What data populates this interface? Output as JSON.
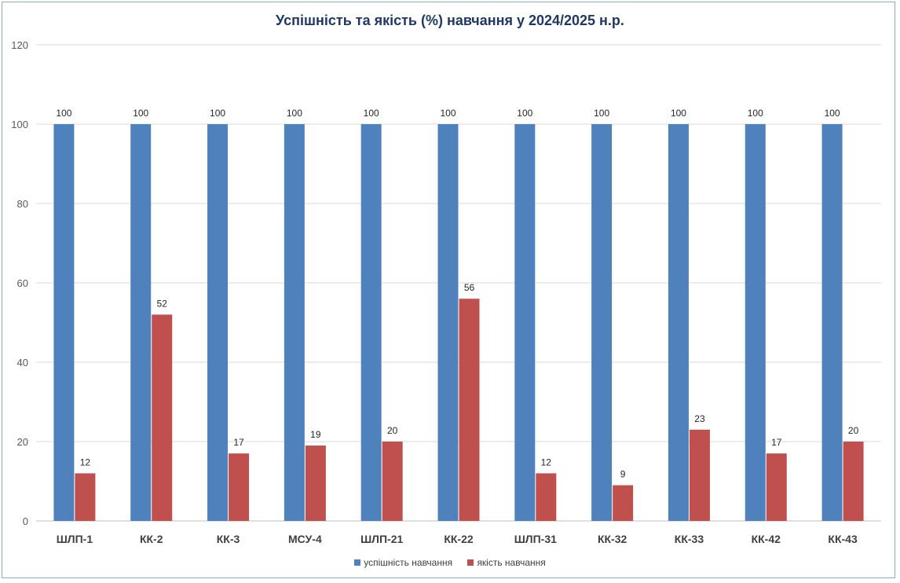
{
  "chart_data": {
    "type": "bar",
    "title": "Успішність та якість (%)  навчання у 2024/2025 н.р.",
    "categories": [
      "ШЛП-1",
      "КК-2",
      "КК-3",
      "МСУ-4",
      "ШЛП-21",
      "КК-22",
      "ШЛП-31",
      "КК-32",
      "КК-33",
      "КК-42",
      "КК-43"
    ],
    "series": [
      {
        "name": "успішність навчання",
        "color": "#4f81bd",
        "values": [
          100,
          100,
          100,
          100,
          100,
          100,
          100,
          100,
          100,
          100,
          100
        ]
      },
      {
        "name": "якість навчання",
        "color": "#c0504d",
        "values": [
          12,
          52,
          17,
          19,
          20,
          56,
          12,
          9,
          23,
          17,
          20
        ]
      }
    ],
    "ylim": [
      0,
      120
    ],
    "yticks": [
      "0",
      "20",
      "40",
      "60",
      "80",
      "100",
      "120"
    ],
    "grid": true,
    "legend_position": "bottom"
  }
}
